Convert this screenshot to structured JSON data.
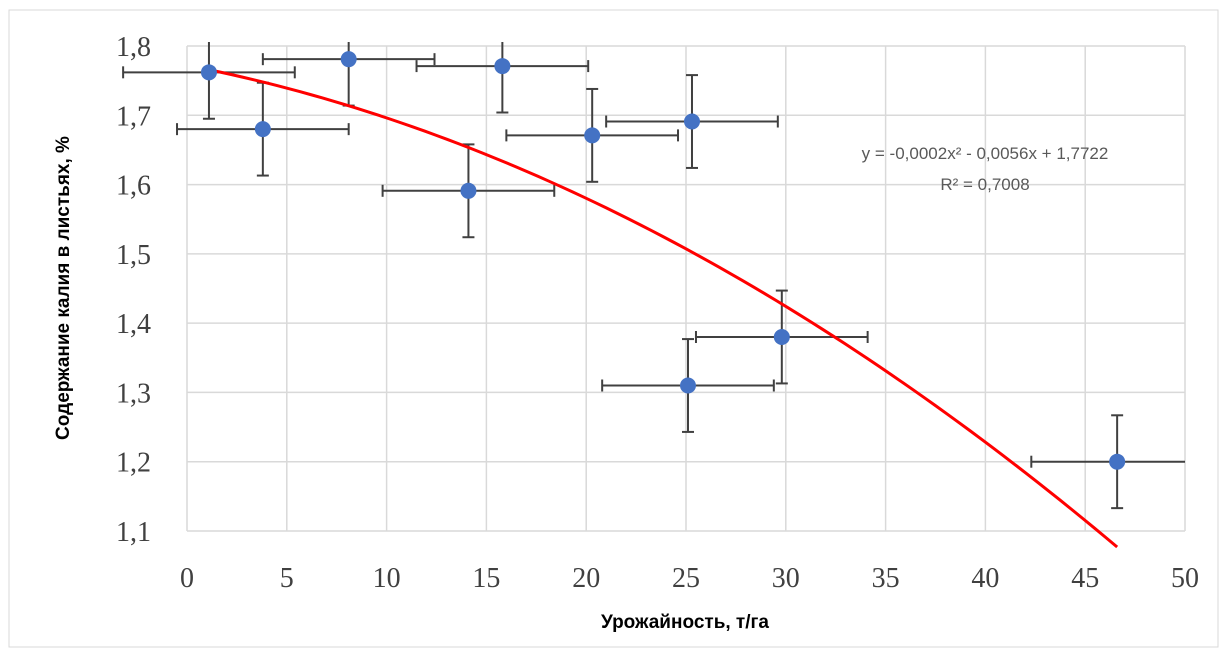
{
  "chart_data": {
    "type": "scatter",
    "title": "",
    "xlabel": "Урожайность, т/га",
    "ylabel": "Содержание калия в листьях, %",
    "xlim": [
      0,
      50
    ],
    "ylim": [
      1.1,
      1.8
    ],
    "x_ticks": [
      0,
      5,
      10,
      15,
      20,
      25,
      30,
      35,
      40,
      45,
      50
    ],
    "y_ticks": [
      1.1,
      1.2,
      1.3,
      1.4,
      1.5,
      1.6,
      1.7,
      1.8
    ],
    "x_tick_labels": [
      "0",
      "5",
      "10",
      "15",
      "20",
      "25",
      "30",
      "35",
      "40",
      "45",
      "50"
    ],
    "y_tick_labels": [
      "1,1",
      "1,2",
      "1,3",
      "1,4",
      "1,5",
      "1,6",
      "1,7",
      "1,8"
    ],
    "grid": true,
    "legend": false,
    "points": [
      {
        "x": 1.1,
        "y": 1.762,
        "x_err": 4.3,
        "y_err": 0.067
      },
      {
        "x": 3.8,
        "y": 1.68,
        "x_err": 4.3,
        "y_err": 0.067
      },
      {
        "x": 8.1,
        "y": 1.781,
        "x_err": 4.3,
        "y_err": 0.067
      },
      {
        "x": 14.1,
        "y": 1.591,
        "x_err": 4.3,
        "y_err": 0.067
      },
      {
        "x": 15.8,
        "y": 1.771,
        "x_err": 4.3,
        "y_err": 0.067
      },
      {
        "x": 20.3,
        "y": 1.671,
        "x_err": 4.3,
        "y_err": 0.067
      },
      {
        "x": 25.3,
        "y": 1.691,
        "x_err": 4.3,
        "y_err": 0.067
      },
      {
        "x": 25.1,
        "y": 1.31,
        "x_err": 4.3,
        "y_err": 0.067
      },
      {
        "x": 29.8,
        "y": 1.38,
        "x_err": 4.3,
        "y_err": 0.067
      },
      {
        "x": 46.6,
        "y": 1.2,
        "x_err": 4.3,
        "y_err": 0.067
      }
    ],
    "trendline": {
      "type": "polynomial",
      "coefficients": [
        -0.0002,
        -0.0056,
        1.7722
      ],
      "x_range": [
        1.1,
        46.6
      ],
      "equation": "y = -0,0002x² - 0,0056x + 1,7722",
      "r_squared": "R² = 0,7008"
    },
    "colors": {
      "points": "#4472C4",
      "trendline": "#FF0000",
      "error_bars": "#404040",
      "grid": "#D9D9D9"
    }
  }
}
